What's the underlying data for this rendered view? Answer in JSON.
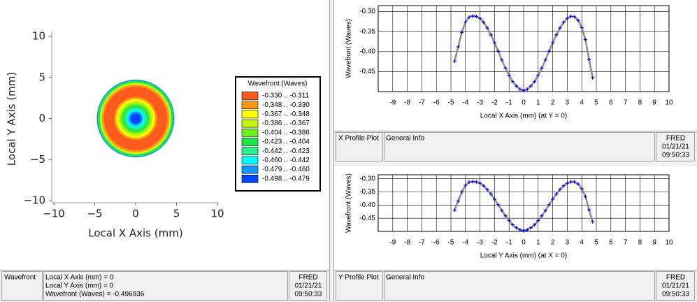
{
  "chart_data": [
    {
      "type": "heatmap",
      "xlabel": "Local X Axis (mm)",
      "ylabel": "Local Y Axis (mm)",
      "xlim": [
        -10,
        10
      ],
      "ylim": [
        -10,
        10
      ],
      "xticks": [
        {
          "value": -10,
          "label": "−10"
        },
        {
          "value": -5,
          "label": "−5"
        },
        0,
        5,
        10
      ],
      "yticks": [
        {
          "value": -10,
          "label": "−10"
        },
        {
          "value": -5,
          "label": "−5"
        },
        0,
        5,
        10
      ],
      "legend": {
        "title": "Wavefront (Waves)",
        "bins": [
          {
            "label": "-0.330 .. -0.311",
            "min": -0.33,
            "max": -0.311,
            "color": "#ff5a1e"
          },
          {
            "label": "-0.348 .. -0.330",
            "min": -0.348,
            "max": -0.33,
            "color": "#ff9a14"
          },
          {
            "label": "-0.367 .. -0.348",
            "min": -0.367,
            "max": -0.348,
            "color": "#ffff00"
          },
          {
            "label": "-0.386 .. -0.367",
            "min": -0.386,
            "max": -0.367,
            "color": "#c4f514"
          },
          {
            "label": "-0.404 .. -0.386",
            "min": -0.404,
            "max": -0.386,
            "color": "#6ef01e"
          },
          {
            "label": "-0.423 .. -0.404",
            "min": -0.423,
            "max": -0.404,
            "color": "#1ee646"
          },
          {
            "label": "-0.442 .. -0.423",
            "min": -0.442,
            "max": -0.423,
            "color": "#28f08c"
          },
          {
            "label": "-0.460 .. -0.442",
            "min": -0.46,
            "max": -0.442,
            "color": "#00ffff"
          },
          {
            "label": "-0.479 .. -0.460",
            "min": -0.479,
            "max": -0.46,
            "color": "#1496ff"
          },
          {
            "label": "-0.498 .. -0.479",
            "min": -0.498,
            "max": -0.479,
            "color": "#0046ff"
          }
        ]
      }
    },
    {
      "type": "line",
      "xlabel": "Local X Axis (mm) (at Y = 0)",
      "ylabel": "Wavefront (Waves)",
      "x": [
        -4.75,
        -4.5,
        -4.25,
        -4,
        -3.75,
        -3.5,
        -3.25,
        -3,
        -2.75,
        -2.5,
        -2.25,
        -2,
        -1.75,
        -1.5,
        -1.25,
        -1,
        -0.75,
        -0.5,
        -0.25,
        0,
        0.25,
        0.5,
        0.75,
        1,
        1.25,
        1.5,
        1.75,
        2,
        2.25,
        2.5,
        2.75,
        3,
        3.25,
        3.5,
        3.75,
        4,
        4.25,
        4.5,
        4.75
      ],
      "values": [
        -0.424,
        -0.388,
        -0.352,
        -0.326,
        -0.314,
        -0.311,
        -0.312,
        -0.317,
        -0.327,
        -0.341,
        -0.358,
        -0.378,
        -0.399,
        -0.421,
        -0.441,
        -0.459,
        -0.475,
        -0.486,
        -0.494,
        -0.497,
        -0.494,
        -0.486,
        -0.475,
        -0.459,
        -0.441,
        -0.421,
        -0.399,
        -0.378,
        -0.358,
        -0.341,
        -0.327,
        -0.317,
        -0.312,
        -0.313,
        -0.322,
        -0.34,
        -0.37,
        -0.42,
        -0.466
      ],
      "line_color": "#8c8c8c",
      "marker_color": "#0000ff",
      "xlim": [
        -10,
        10
      ],
      "ylim": [
        -0.5,
        -0.285
      ],
      "xticks": [
        -9,
        -8,
        -7,
        -6,
        -5,
        -4,
        -3,
        -2,
        -1,
        0,
        1,
        2,
        3,
        4,
        5,
        6,
        7,
        8,
        9,
        10
      ],
      "yticks": [
        -0.45,
        {
          "value": -0.4,
          "label": "-0.40"
        },
        -0.35,
        {
          "value": -0.3,
          "label": "-0.30"
        }
      ],
      "grid": true
    },
    {
      "type": "line",
      "xlabel": "Local Y Axis (mm) (at X = 0)",
      "ylabel": "Wavefront (Waves)",
      "x": [
        -4.75,
        -4.5,
        -4.25,
        -4,
        -3.75,
        -3.5,
        -3.25,
        -3,
        -2.75,
        -2.5,
        -2.25,
        -2,
        -1.75,
        -1.5,
        -1.25,
        -1,
        -0.75,
        -0.5,
        -0.25,
        0,
        0.25,
        0.5,
        0.75,
        1,
        1.25,
        1.5,
        1.75,
        2,
        2.25,
        2.5,
        2.75,
        3,
        3.25,
        3.5,
        3.75,
        4,
        4.25,
        4.5,
        4.75
      ],
      "values": [
        -0.42,
        -0.385,
        -0.35,
        -0.325,
        -0.313,
        -0.311,
        -0.312,
        -0.317,
        -0.327,
        -0.341,
        -0.358,
        -0.378,
        -0.399,
        -0.421,
        -0.441,
        -0.459,
        -0.475,
        -0.486,
        -0.494,
        -0.497,
        -0.494,
        -0.486,
        -0.475,
        -0.459,
        -0.441,
        -0.421,
        -0.399,
        -0.378,
        -0.358,
        -0.341,
        -0.327,
        -0.317,
        -0.312,
        -0.312,
        -0.32,
        -0.338,
        -0.368,
        -0.418,
        -0.464
      ],
      "line_color": "#8c8c8c",
      "marker_color": "#0000ff",
      "xlim": [
        -10,
        10
      ],
      "ylim": [
        -0.5,
        -0.285
      ],
      "xticks": [
        -9,
        -8,
        -7,
        -6,
        -5,
        -4,
        -3,
        -2,
        -1,
        0,
        1,
        2,
        3,
        4,
        5,
        6,
        7,
        8,
        9,
        10
      ],
      "yticks": [
        -0.45,
        {
          "value": -0.4,
          "label": "-0.40"
        },
        -0.35,
        {
          "value": -0.3,
          "label": "-0.30"
        }
      ],
      "grid": true
    }
  ],
  "panels": [
    {
      "name": "Wavefront",
      "info": [
        "Local X Axis (mm) = 0",
        "Local Y Axis (mm) = 0",
        "Wavefront (Waves) = -0.496936"
      ],
      "app": "FRED",
      "date": "01/21/21",
      "time": "09:50:33"
    },
    {
      "name": "X Profile Plot",
      "info": [
        "General Info"
      ],
      "app": "FRED",
      "date": "01/21/21",
      "time": "09:50:33"
    },
    {
      "name": "Y Profile Plot",
      "info": [
        "General Info"
      ],
      "app": "FRED",
      "date": "01/21/21",
      "time": "09:50:33"
    }
  ]
}
